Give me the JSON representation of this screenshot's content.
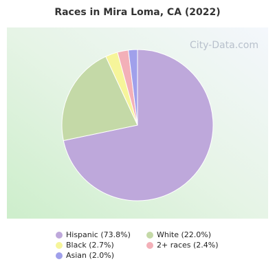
{
  "chart_data": {
    "type": "pie",
    "title": "Races in Mira Loma, CA (2022)",
    "watermark": "City-Data.com",
    "categories": [
      "Hispanic (73.8%)",
      "White (22.0%)",
      "Black (2.7%)",
      "2+ races (2.4%)",
      "Asian (2.0%)"
    ],
    "values": [
      73.8,
      22.0,
      2.7,
      2.4,
      2.0
    ],
    "colors": [
      "#bea8db",
      "#c4d9a7",
      "#f6f59a",
      "#f3b0b8",
      "#a0a0eb"
    ]
  }
}
